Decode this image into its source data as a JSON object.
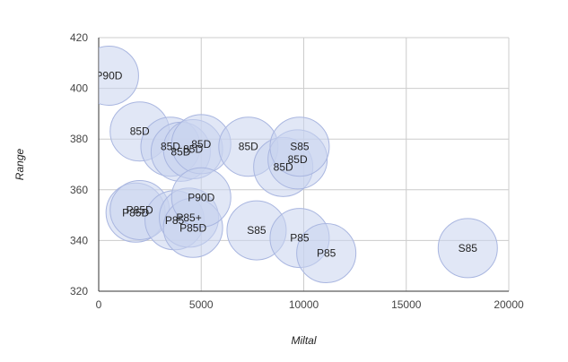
{
  "chart_data": {
    "type": "scatter",
    "title": "",
    "xlabel": "Miltal",
    "ylabel": "Range",
    "xlim": [
      0,
      20000
    ],
    "ylim": [
      320,
      420
    ],
    "x_ticks": [
      "0",
      "5000",
      "10000",
      "15000",
      "20000"
    ],
    "y_ticks": [
      "320",
      "340",
      "360",
      "380",
      "400",
      "420"
    ],
    "grid": true,
    "bubble_color": "#c9d3ef",
    "bubble_edge_color": "#a9b6e0",
    "points": [
      {
        "x": 500,
        "y": 405,
        "label": "P90D"
      },
      {
        "x": 2000,
        "y": 383,
        "label": "85D"
      },
      {
        "x": 3500,
        "y": 377,
        "label": "85D"
      },
      {
        "x": 4000,
        "y": 375,
        "label": "85D"
      },
      {
        "x": 4600,
        "y": 376,
        "label": "85D"
      },
      {
        "x": 5000,
        "y": 378,
        "label": "85D"
      },
      {
        "x": 7300,
        "y": 377,
        "label": "85D"
      },
      {
        "x": 9000,
        "y": 369,
        "label": "85D"
      },
      {
        "x": 9700,
        "y": 372,
        "label": "85D"
      },
      {
        "x": 9800,
        "y": 377,
        "label": "S85"
      },
      {
        "x": 1800,
        "y": 351,
        "label": "P85D"
      },
      {
        "x": 2000,
        "y": 352,
        "label": "P85D"
      },
      {
        "x": 3700,
        "y": 348,
        "label": "P85"
      },
      {
        "x": 4400,
        "y": 349,
        "label": "P85+"
      },
      {
        "x": 4600,
        "y": 345,
        "label": "P85D"
      },
      {
        "x": 5000,
        "y": 357,
        "label": "P90D"
      },
      {
        "x": 7700,
        "y": 344,
        "label": "S85"
      },
      {
        "x": 9800,
        "y": 341,
        "label": "P85"
      },
      {
        "x": 11100,
        "y": 335,
        "label": "P85"
      },
      {
        "x": 18000,
        "y": 337,
        "label": "S85"
      }
    ]
  }
}
